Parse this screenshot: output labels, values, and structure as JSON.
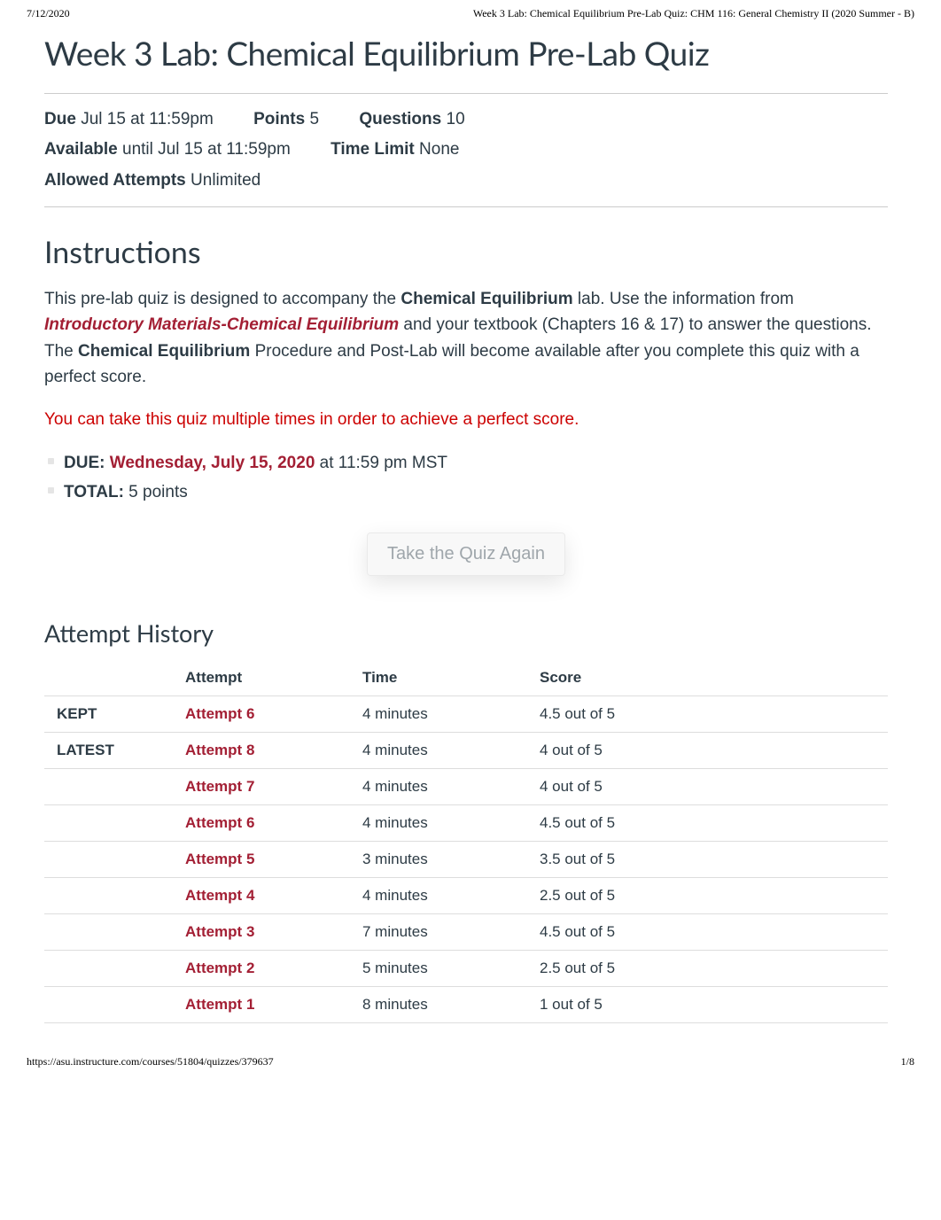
{
  "header": {
    "date": "7/12/2020",
    "breadcrumb": "Week 3 Lab: Chemical Equilibrium Pre-Lab Quiz: CHM 116: General Chemistry II (2020 Summer - B)"
  },
  "title": "Week 3 Lab: Chemical Equilibrium Pre-Lab Quiz",
  "meta": {
    "due_label": "Due",
    "due_value": "Jul 15 at 11:59pm",
    "points_label": "Points",
    "points_value": "5",
    "questions_label": "Questions",
    "questions_value": "10",
    "available_label": "Available",
    "available_value": "until Jul 15 at 11:59pm",
    "time_limit_label": "Time Limit",
    "time_limit_value": "None",
    "allowed_attempts_label": "Allowed Attempts",
    "allowed_attempts_value": "Unlimited"
  },
  "instructions": {
    "heading": "Instructions",
    "p1a": "This pre-lab quiz is designed to accompany the ",
    "p1b": "Chemical Equilibrium",
    "p1c": " lab. Use the information from ",
    "link_text": "Introductory Materials-Chemical Equilibrium",
    "p1d": " and your textbook (Chapters 16 & 17) to answer the questions. The ",
    "p1e": "Chemical Equilibrium",
    "p1f": " Procedure and Post-Lab will become available after you complete this quiz with a perfect score.",
    "p2": "You can take this quiz multiple times in order to achieve a perfect score.",
    "due_bullet_label": "DUE:  ",
    "due_bullet_date": "Wednesday, July 15, 2020",
    "due_bullet_tail": " at 11:59 pm MST",
    "total_bullet_label": "TOTAL:",
    "total_bullet_value": "  5 points"
  },
  "take_quiz_label": "Take the Quiz Again",
  "attempt_history": {
    "heading": "Attempt History",
    "columns": [
      "",
      "Attempt",
      "Time",
      "Score"
    ],
    "rows": [
      {
        "status": "KEPT",
        "attempt": "Attempt 6",
        "time": "4 minutes",
        "score": "4.5 out of 5"
      },
      {
        "status": "LATEST",
        "attempt": "Attempt 8",
        "time": "4 minutes",
        "score": "4 out of 5"
      },
      {
        "status": "",
        "attempt": "Attempt 7",
        "time": "4 minutes",
        "score": "4 out of 5"
      },
      {
        "status": "",
        "attempt": "Attempt 6",
        "time": "4 minutes",
        "score": "4.5 out of 5"
      },
      {
        "status": "",
        "attempt": "Attempt 5",
        "time": "3 minutes",
        "score": "3.5 out of 5"
      },
      {
        "status": "",
        "attempt": "Attempt 4",
        "time": "4 minutes",
        "score": "2.5 out of 5"
      },
      {
        "status": "",
        "attempt": "Attempt 3",
        "time": "7 minutes",
        "score": "4.5 out of 5"
      },
      {
        "status": "",
        "attempt": "Attempt 2",
        "time": "5 minutes",
        "score": "2.5 out of 5"
      },
      {
        "status": "",
        "attempt": "Attempt 1",
        "time": "8 minutes",
        "score": "1 out of 5"
      }
    ]
  },
  "footer": {
    "url": "https://asu.instructure.com/courses/51804/quizzes/379637",
    "pagenum": "1/8"
  },
  "colors": {
    "link": "#a31f34",
    "red": "#cc0000",
    "text": "#2d3b45"
  }
}
